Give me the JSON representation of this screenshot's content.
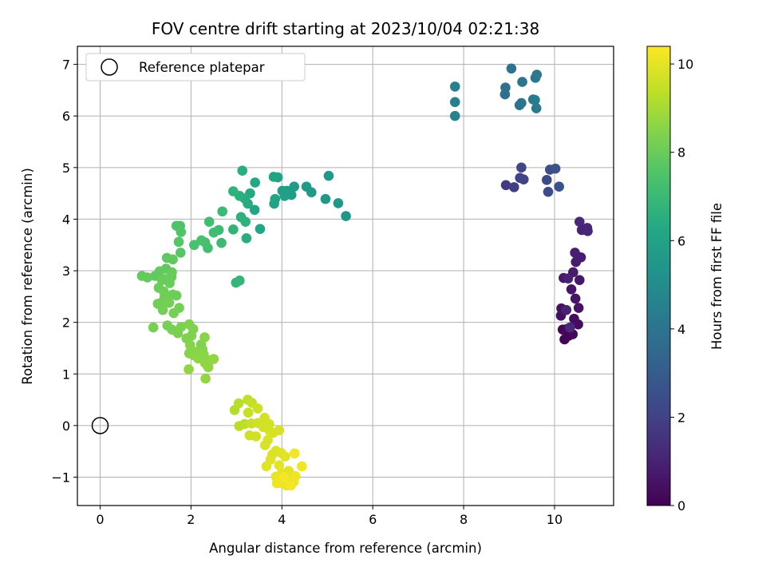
{
  "chart_data": {
    "type": "scatter",
    "title": "FOV centre drift starting at 2023/10/04 02:21:38",
    "xlabel": "Angular distance from reference (arcmin)",
    "ylabel": "Rotation from reference (arcmin)",
    "xlim": [
      -0.5,
      11.3
    ],
    "ylim": [
      -1.55,
      7.35
    ],
    "xticks": [
      0,
      2,
      4,
      6,
      8,
      10
    ],
    "yticks": [
      -1,
      0,
      1,
      2,
      3,
      4,
      5,
      6,
      7
    ],
    "grid": true,
    "legend": {
      "placement": "top-left",
      "entries": [
        "Reference platepar"
      ]
    },
    "reference_point": {
      "x": 0,
      "y": 0,
      "label": "Reference platepar"
    },
    "colorbar": {
      "label": "Hours from first FF file",
      "range": [
        0,
        10.4
      ],
      "ticks": [
        0,
        2,
        4,
        6,
        8,
        10
      ],
      "colormap": "viridis"
    },
    "points": [
      {
        "x": 10.22,
        "y": 1.67,
        "h": 0.05
      },
      {
        "x": 10.31,
        "y": 1.74,
        "h": 0.1
      },
      {
        "x": 10.18,
        "y": 1.86,
        "h": 0.15
      },
      {
        "x": 10.4,
        "y": 1.77,
        "h": 0.2
      },
      {
        "x": 10.27,
        "y": 1.87,
        "h": 0.25
      },
      {
        "x": 10.52,
        "y": 1.96,
        "h": 0.3
      },
      {
        "x": 10.43,
        "y": 2.07,
        "h": 0.35
      },
      {
        "x": 10.14,
        "y": 2.13,
        "h": 0.4
      },
      {
        "x": 10.15,
        "y": 2.27,
        "h": 0.45
      },
      {
        "x": 10.53,
        "y": 2.28,
        "h": 0.5
      },
      {
        "x": 10.46,
        "y": 2.46,
        "h": 0.55
      },
      {
        "x": 10.37,
        "y": 2.64,
        "h": 0.6
      },
      {
        "x": 10.55,
        "y": 2.82,
        "h": 0.65
      },
      {
        "x": 10.2,
        "y": 2.86,
        "h": 0.7
      },
      {
        "x": 10.41,
        "y": 2.97,
        "h": 0.75
      },
      {
        "x": 10.47,
        "y": 3.17,
        "h": 0.8
      },
      {
        "x": 10.58,
        "y": 3.26,
        "h": 0.85
      },
      {
        "x": 10.45,
        "y": 3.35,
        "h": 0.9
      },
      {
        "x": 10.3,
        "y": 2.85,
        "h": 0.95
      },
      {
        "x": 10.26,
        "y": 2.24,
        "h": 1.0
      },
      {
        "x": 10.6,
        "y": 3.79,
        "h": 1.05
      },
      {
        "x": 10.73,
        "y": 3.77,
        "h": 1.1
      },
      {
        "x": 10.72,
        "y": 3.83,
        "h": 1.15
      },
      {
        "x": 10.55,
        "y": 3.95,
        "h": 1.2
      },
      {
        "x": 10.34,
        "y": 1.9,
        "h": 1.25
      },
      {
        "x": 8.93,
        "y": 4.66,
        "h": 1.8
      },
      {
        "x": 9.11,
        "y": 4.62,
        "h": 1.9
      },
      {
        "x": 9.24,
        "y": 4.8,
        "h": 2.0
      },
      {
        "x": 9.32,
        "y": 4.77,
        "h": 2.1
      },
      {
        "x": 9.27,
        "y": 5.0,
        "h": 2.2
      },
      {
        "x": 9.83,
        "y": 4.76,
        "h": 2.3
      },
      {
        "x": 9.86,
        "y": 4.53,
        "h": 2.4
      },
      {
        "x": 9.9,
        "y": 4.96,
        "h": 2.5
      },
      {
        "x": 10.02,
        "y": 4.98,
        "h": 2.6
      },
      {
        "x": 10.1,
        "y": 4.63,
        "h": 2.7
      },
      {
        "x": 8.91,
        "y": 6.42,
        "h": 3.8
      },
      {
        "x": 8.92,
        "y": 6.55,
        "h": 3.85
      },
      {
        "x": 9.05,
        "y": 6.92,
        "h": 3.9
      },
      {
        "x": 9.23,
        "y": 6.21,
        "h": 3.95
      },
      {
        "x": 9.27,
        "y": 6.25,
        "h": 4.0
      },
      {
        "x": 9.29,
        "y": 6.66,
        "h": 4.05
      },
      {
        "x": 9.53,
        "y": 6.32,
        "h": 4.1
      },
      {
        "x": 9.58,
        "y": 6.74,
        "h": 4.15
      },
      {
        "x": 9.61,
        "y": 6.8,
        "h": 4.2
      },
      {
        "x": 9.6,
        "y": 6.15,
        "h": 4.25
      },
      {
        "x": 9.57,
        "y": 6.31,
        "h": 4.3
      },
      {
        "x": 7.81,
        "y": 6.57,
        "h": 4.5
      },
      {
        "x": 7.81,
        "y": 6.27,
        "h": 4.55
      },
      {
        "x": 7.81,
        "y": 6.0,
        "h": 4.6
      },
      {
        "x": 5.41,
        "y": 4.06,
        "h": 5.4
      },
      {
        "x": 5.24,
        "y": 4.31,
        "h": 5.45
      },
      {
        "x": 5.03,
        "y": 4.84,
        "h": 5.5
      },
      {
        "x": 4.96,
        "y": 4.39,
        "h": 5.55
      },
      {
        "x": 4.65,
        "y": 4.52,
        "h": 5.6
      },
      {
        "x": 4.54,
        "y": 4.63,
        "h": 5.65
      },
      {
        "x": 4.27,
        "y": 4.63,
        "h": 5.7
      },
      {
        "x": 4.21,
        "y": 4.47,
        "h": 5.75
      },
      {
        "x": 4.11,
        "y": 4.55,
        "h": 5.8
      },
      {
        "x": 4.06,
        "y": 4.45,
        "h": 5.85
      },
      {
        "x": 4.01,
        "y": 4.55,
        "h": 5.9
      },
      {
        "x": 3.91,
        "y": 4.81,
        "h": 5.95
      },
      {
        "x": 3.83,
        "y": 4.3,
        "h": 6.0
      },
      {
        "x": 3.85,
        "y": 4.39,
        "h": 6.05
      },
      {
        "x": 3.82,
        "y": 4.82,
        "h": 6.1
      },
      {
        "x": 3.52,
        "y": 3.81,
        "h": 6.15
      },
      {
        "x": 3.4,
        "y": 4.18,
        "h": 6.2
      },
      {
        "x": 3.41,
        "y": 4.71,
        "h": 6.25
      },
      {
        "x": 3.3,
        "y": 4.5,
        "h": 6.3
      },
      {
        "x": 3.25,
        "y": 4.3,
        "h": 6.35
      },
      {
        "x": 3.18,
        "y": 4.4,
        "h": 6.4
      },
      {
        "x": 3.22,
        "y": 3.63,
        "h": 6.45
      },
      {
        "x": 3.13,
        "y": 4.94,
        "h": 6.5
      },
      {
        "x": 3.07,
        "y": 4.45,
        "h": 6.55
      },
      {
        "x": 3.1,
        "y": 4.04,
        "h": 6.6
      },
      {
        "x": 3.2,
        "y": 3.95,
        "h": 6.65
      },
      {
        "x": 2.93,
        "y": 4.54,
        "h": 6.7
      },
      {
        "x": 2.93,
        "y": 3.8,
        "h": 6.75
      },
      {
        "x": 3.07,
        "y": 2.81,
        "h": 6.8
      },
      {
        "x": 2.99,
        "y": 2.77,
        "h": 6.85
      },
      {
        "x": 2.69,
        "y": 4.15,
        "h": 7.0
      },
      {
        "x": 2.67,
        "y": 3.54,
        "h": 7.05
      },
      {
        "x": 2.61,
        "y": 3.79,
        "h": 7.1
      },
      {
        "x": 2.5,
        "y": 3.74,
        "h": 7.15
      },
      {
        "x": 2.4,
        "y": 3.95,
        "h": 7.2
      },
      {
        "x": 2.37,
        "y": 3.44,
        "h": 7.25
      },
      {
        "x": 2.31,
        "y": 3.55,
        "h": 7.3
      },
      {
        "x": 2.23,
        "y": 3.59,
        "h": 7.35
      },
      {
        "x": 2.07,
        "y": 3.5,
        "h": 7.4
      },
      {
        "x": 1.76,
        "y": 3.87,
        "h": 7.45
      },
      {
        "x": 1.68,
        "y": 3.87,
        "h": 7.5
      },
      {
        "x": 1.78,
        "y": 3.75,
        "h": 7.55
      },
      {
        "x": 1.73,
        "y": 3.56,
        "h": 7.6
      },
      {
        "x": 1.77,
        "y": 3.35,
        "h": 7.65
      },
      {
        "x": 1.47,
        "y": 3.25,
        "h": 7.8
      },
      {
        "x": 1.6,
        "y": 3.22,
        "h": 7.82
      },
      {
        "x": 1.45,
        "y": 3.04,
        "h": 7.84
      },
      {
        "x": 1.31,
        "y": 2.99,
        "h": 7.86
      },
      {
        "x": 1.21,
        "y": 2.9,
        "h": 7.88
      },
      {
        "x": 0.92,
        "y": 2.9,
        "h": 7.9
      },
      {
        "x": 1.04,
        "y": 2.87,
        "h": 7.92
      },
      {
        "x": 1.58,
        "y": 2.97,
        "h": 7.94
      },
      {
        "x": 1.57,
        "y": 2.88,
        "h": 7.96
      },
      {
        "x": 1.44,
        "y": 2.84,
        "h": 7.98
      },
      {
        "x": 1.36,
        "y": 2.82,
        "h": 8.0
      },
      {
        "x": 1.53,
        "y": 2.76,
        "h": 8.02
      },
      {
        "x": 1.29,
        "y": 2.67,
        "h": 8.04
      },
      {
        "x": 1.4,
        "y": 2.6,
        "h": 8.06
      },
      {
        "x": 1.68,
        "y": 2.52,
        "h": 8.08
      },
      {
        "x": 1.6,
        "y": 2.54,
        "h": 8.1
      },
      {
        "x": 1.42,
        "y": 2.5,
        "h": 8.12
      },
      {
        "x": 1.39,
        "y": 2.42,
        "h": 8.14
      },
      {
        "x": 1.27,
        "y": 2.36,
        "h": 8.16
      },
      {
        "x": 1.52,
        "y": 2.38,
        "h": 8.18
      },
      {
        "x": 1.38,
        "y": 2.24,
        "h": 8.2
      },
      {
        "x": 1.74,
        "y": 2.28,
        "h": 8.22
      },
      {
        "x": 1.62,
        "y": 2.18,
        "h": 8.24
      },
      {
        "x": 1.48,
        "y": 1.94,
        "h": 8.26
      },
      {
        "x": 1.17,
        "y": 1.9,
        "h": 8.28
      },
      {
        "x": 1.58,
        "y": 1.86,
        "h": 8.3
      },
      {
        "x": 1.71,
        "y": 1.79,
        "h": 8.32
      },
      {
        "x": 1.78,
        "y": 1.91,
        "h": 8.34
      },
      {
        "x": 1.96,
        "y": 1.96,
        "h": 8.36
      },
      {
        "x": 2.05,
        "y": 1.87,
        "h": 8.38
      },
      {
        "x": 2.01,
        "y": 1.74,
        "h": 8.4
      },
      {
        "x": 1.9,
        "y": 1.69,
        "h": 8.42
      },
      {
        "x": 2.22,
        "y": 1.57,
        "h": 8.44
      },
      {
        "x": 2.25,
        "y": 1.48,
        "h": 8.46
      },
      {
        "x": 1.98,
        "y": 1.56,
        "h": 8.48
      },
      {
        "x": 1.96,
        "y": 1.4,
        "h": 8.5
      },
      {
        "x": 2.3,
        "y": 1.71,
        "h": 8.52
      },
      {
        "x": 2.12,
        "y": 1.43,
        "h": 8.54
      },
      {
        "x": 2.07,
        "y": 1.36,
        "h": 8.56
      },
      {
        "x": 2.28,
        "y": 1.38,
        "h": 8.58
      },
      {
        "x": 2.16,
        "y": 1.3,
        "h": 8.6
      },
      {
        "x": 2.44,
        "y": 1.27,
        "h": 8.62
      },
      {
        "x": 2.31,
        "y": 1.21,
        "h": 8.64
      },
      {
        "x": 2.38,
        "y": 1.13,
        "h": 8.66
      },
      {
        "x": 1.95,
        "y": 1.09,
        "h": 8.68
      },
      {
        "x": 2.32,
        "y": 0.91,
        "h": 8.7
      },
      {
        "x": 2.5,
        "y": 1.29,
        "h": 8.72
      },
      {
        "x": 2.96,
        "y": 0.3,
        "h": 9.2
      },
      {
        "x": 3.05,
        "y": 0.43,
        "h": 9.25
      },
      {
        "x": 3.06,
        "y": -0.01,
        "h": 9.3
      },
      {
        "x": 3.18,
        "y": 0.03,
        "h": 9.35
      },
      {
        "x": 3.25,
        "y": 0.5,
        "h": 9.4
      },
      {
        "x": 3.34,
        "y": 0.44,
        "h": 9.45
      },
      {
        "x": 3.26,
        "y": 0.25,
        "h": 9.5
      },
      {
        "x": 3.33,
        "y": 0.04,
        "h": 9.55
      },
      {
        "x": 3.47,
        "y": 0.33,
        "h": 9.6
      },
      {
        "x": 3.47,
        "y": 0.05,
        "h": 9.62
      },
      {
        "x": 3.29,
        "y": -0.19,
        "h": 9.64
      },
      {
        "x": 3.43,
        "y": -0.21,
        "h": 9.66
      },
      {
        "x": 3.62,
        "y": 0.15,
        "h": 9.68
      },
      {
        "x": 3.72,
        "y": 0.03,
        "h": 9.7
      },
      {
        "x": 3.59,
        "y": -0.03,
        "h": 9.72
      },
      {
        "x": 3.73,
        "y": -0.1,
        "h": 9.74
      },
      {
        "x": 3.81,
        "y": -0.14,
        "h": 9.76
      },
      {
        "x": 3.94,
        "y": -0.09,
        "h": 9.78
      },
      {
        "x": 3.63,
        "y": -0.38,
        "h": 9.8
      },
      {
        "x": 3.69,
        "y": -0.28,
        "h": 9.82
      },
      {
        "x": 3.87,
        "y": -0.49,
        "h": 9.84
      },
      {
        "x": 3.79,
        "y": -0.56,
        "h": 9.86
      },
      {
        "x": 3.66,
        "y": -0.79,
        "h": 9.88
      },
      {
        "x": 3.75,
        "y": -0.66,
        "h": 9.9
      },
      {
        "x": 3.98,
        "y": -0.53,
        "h": 9.92
      },
      {
        "x": 4.07,
        "y": -0.6,
        "h": 9.94
      },
      {
        "x": 3.94,
        "y": -0.77,
        "h": 9.96
      },
      {
        "x": 4.0,
        "y": -0.92,
        "h": 9.98
      },
      {
        "x": 4.15,
        "y": -0.88,
        "h": 10.0
      },
      {
        "x": 3.87,
        "y": -0.99,
        "h": 10.02
      },
      {
        "x": 4.07,
        "y": -1.03,
        "h": 10.04
      },
      {
        "x": 4.18,
        "y": -1.06,
        "h": 10.06
      },
      {
        "x": 3.95,
        "y": -1.11,
        "h": 10.08
      },
      {
        "x": 4.26,
        "y": -1.09,
        "h": 10.1
      },
      {
        "x": 4.1,
        "y": -1.16,
        "h": 10.12
      },
      {
        "x": 3.89,
        "y": -1.12,
        "h": 10.14
      },
      {
        "x": 4.3,
        "y": -0.98,
        "h": 10.16
      },
      {
        "x": 4.44,
        "y": -0.79,
        "h": 10.18
      },
      {
        "x": 4.28,
        "y": -0.54,
        "h": 10.2
      },
      {
        "x": 4.2,
        "y": -1.16,
        "h": 10.25
      },
      {
        "x": 4.05,
        "y": -1.0,
        "h": 10.3
      }
    ]
  }
}
